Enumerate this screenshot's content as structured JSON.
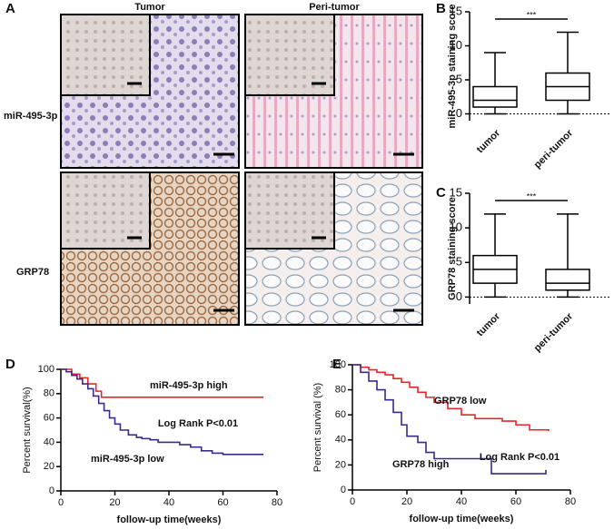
{
  "panel_a": {
    "label": "A",
    "columns": [
      "Tumor",
      "Peri-tumor"
    ],
    "rows": [
      "miR-495-3p",
      "GRP78"
    ]
  },
  "chart_data": [
    {
      "type": "box",
      "panel": "B",
      "ylabel": "miR-495-3p staining score",
      "categories": [
        "tumor",
        "peri-tumor"
      ],
      "min": [
        0,
        0
      ],
      "q1": [
        1,
        2
      ],
      "median": [
        2,
        4
      ],
      "q3": [
        4,
        6
      ],
      "max": [
        9,
        12
      ],
      "ylim": [
        -1,
        15
      ],
      "yticks": [
        0,
        5,
        10,
        15
      ],
      "reference_line": 0,
      "significance": "***",
      "color": "#000000"
    },
    {
      "type": "box",
      "panel": "C",
      "ylabel": "GRP78 staining score",
      "categories": [
        "tumor",
        "peri-tumor"
      ],
      "min": [
        0,
        0
      ],
      "q1": [
        2,
        1
      ],
      "median": [
        4,
        2
      ],
      "q3": [
        6,
        4
      ],
      "max": [
        12,
        12
      ],
      "ylim": [
        -1,
        15
      ],
      "yticks": [
        0,
        5,
        10,
        15
      ],
      "reference_line": 0,
      "significance": "***",
      "color": "#000000"
    },
    {
      "type": "line",
      "step": true,
      "panel": "D",
      "xlabel": "follow-up time(weeks)",
      "ylabel": "Percent survival(%)",
      "xlim": [
        0,
        80
      ],
      "xticks": [
        0,
        20,
        40,
        60,
        80
      ],
      "ylim": [
        0,
        100
      ],
      "yticks": [
        0,
        20,
        40,
        60,
        80,
        100
      ],
      "annotations": [
        "Log Rank P<0.01"
      ],
      "series": [
        {
          "name": "miR-495-3p high",
          "color": "#e8262a",
          "x": [
            0,
            4,
            7,
            10,
            13,
            15,
            75
          ],
          "values": [
            100,
            96,
            93,
            88,
            82,
            77,
            77
          ]
        },
        {
          "name": "miR-495-3p low",
          "color": "#3b2a8c",
          "x": [
            0,
            2,
            4,
            6,
            8,
            10,
            12,
            14,
            16,
            18,
            20,
            22,
            25,
            28,
            30,
            33,
            36,
            40,
            44,
            48,
            52,
            56,
            60,
            75
          ],
          "values": [
            100,
            98,
            95,
            92,
            88,
            84,
            78,
            72,
            66,
            60,
            55,
            50,
            46,
            44,
            43,
            42,
            40,
            40,
            38,
            36,
            33,
            31,
            30,
            30
          ]
        }
      ]
    },
    {
      "type": "line",
      "step": true,
      "panel": "E",
      "xlabel": "follow-up time(weeks)",
      "ylabel": "Percent survival (%)",
      "xlim": [
        0,
        80
      ],
      "xticks": [
        0,
        20,
        40,
        60,
        80
      ],
      "ylim": [
        0,
        100
      ],
      "yticks": [
        0,
        20,
        40,
        60,
        80,
        100
      ],
      "annotations": [
        "Log Rank P<0.01"
      ],
      "series": [
        {
          "name": "GRP78 low",
          "color": "#e8262a",
          "x": [
            0,
            3,
            6,
            9,
            12,
            15,
            18,
            21,
            24,
            27,
            30,
            35,
            40,
            45,
            50,
            55,
            60,
            65,
            72
          ],
          "values": [
            100,
            98,
            96,
            94,
            92,
            89,
            86,
            82,
            78,
            74,
            70,
            65,
            60,
            57,
            57,
            55,
            52,
            48,
            47
          ]
        },
        {
          "name": "GRP78 high",
          "color": "#3b2a8c",
          "x": [
            0,
            3,
            6,
            9,
            12,
            15,
            18,
            20,
            24,
            27,
            30,
            40,
            51,
            70,
            71
          ],
          "values": [
            100,
            94,
            87,
            80,
            72,
            62,
            52,
            43,
            38,
            30,
            25,
            25,
            13,
            13,
            16
          ]
        }
      ]
    }
  ]
}
